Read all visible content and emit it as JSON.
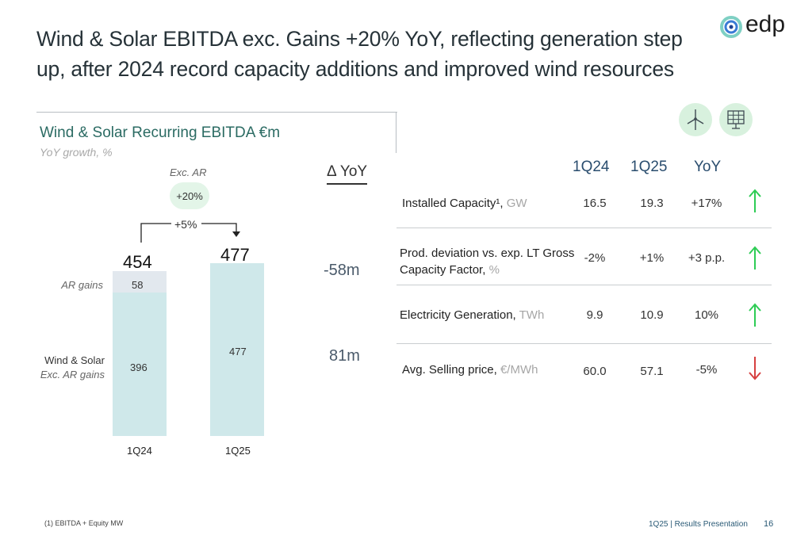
{
  "title": "Wind & Solar EBITDA exc. Gains +20% YoY, reflecting generation step up, after 2024 record capacity additions and improved wind resources",
  "logo": {
    "text": "edp"
  },
  "chart_data": {
    "type": "bar",
    "title": "Wind & Solar Recurring EBITDA €m",
    "subtitle": "YoY growth, %",
    "categories": [
      "1Q24",
      "1Q25"
    ],
    "series": [
      {
        "name": "Wind & Solar Exc. AR gains",
        "values": [
          396,
          477
        ],
        "color": "#cfe8ea"
      },
      {
        "name": "AR gains",
        "values": [
          58,
          0
        ],
        "color": "#e2e8ee"
      }
    ],
    "totals": [
      454,
      477
    ],
    "segment_labels": {
      "exc_ar": [
        "396",
        "477"
      ],
      "ar": [
        "58"
      ]
    },
    "series_labels": {
      "ar": "AR gains",
      "exc_ar": "Wind & Solar Exc. AR gains"
    },
    "exc_ar_growth_title": "Exc. AR",
    "exc_ar_growth": "+20%",
    "total_growth": "+5%",
    "ylim": [
      0,
      500
    ]
  },
  "delta": {
    "header": "Δ YoY",
    "values": [
      "-58m",
      "81m"
    ]
  },
  "kpi_table": {
    "columns": [
      "1Q24",
      "1Q25",
      "YoY"
    ],
    "icons": [
      "wind-turbine-icon",
      "solar-panel-icon"
    ],
    "rows": [
      {
        "label": "Installed Capacity¹,",
        "unit": "GW",
        "q24": "16.5",
        "q25": "19.3",
        "yoy": "+17%",
        "trend": "up"
      },
      {
        "label": "Prod. deviation vs. exp. LT Gross Capacity Factor,",
        "unit": "%",
        "q24": "-2%",
        "q25": "+1%",
        "yoy": "+3 p.p.",
        "trend": "up"
      },
      {
        "label": "Electricity Generation,",
        "unit": "TWh",
        "q24": "9.9",
        "q25": "10.9",
        "yoy": "10%",
        "trend": "up"
      },
      {
        "label": "Avg. Selling price,",
        "unit": "€/MWh",
        "q24": "60.0",
        "q25": "57.1",
        "yoy": "-5%",
        "trend": "down"
      }
    ],
    "colors": {
      "up": "#2ecc55",
      "down": "#d64040"
    }
  },
  "footer": {
    "footnote": "(1) EBITDA + Equity MW",
    "presentation": "1Q25 | Results Presentation",
    "page": "16"
  }
}
